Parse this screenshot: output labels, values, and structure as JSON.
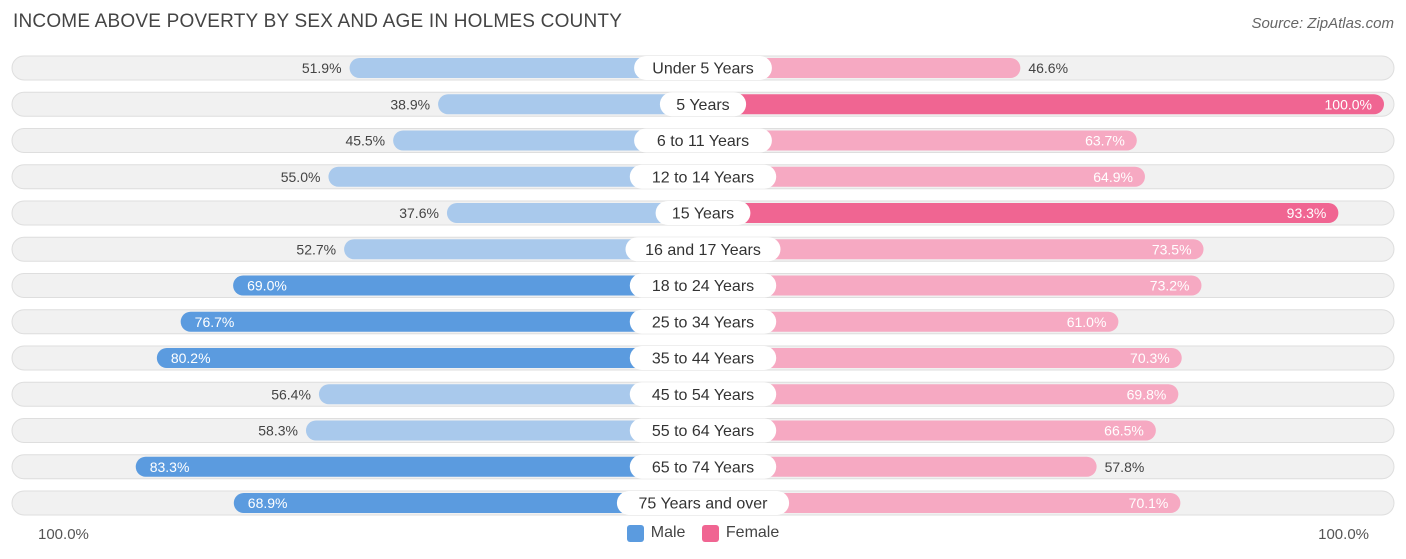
{
  "header": {
    "title": "INCOME ABOVE POVERTY BY SEX AND AGE IN HOLMES COUNTY",
    "source": "Source: ZipAtlas.com"
  },
  "axis": {
    "left_label": "100.0%",
    "right_label": "100.0%"
  },
  "legend": {
    "male_label": "Male",
    "female_label": "Female"
  },
  "colors": {
    "male_dark": "#5b9bdf",
    "male_light": "#a9c9ec",
    "female_dark": "#f06592",
    "female_light": "#f6a9c2",
    "row_bg": "#f1f1f1",
    "row_border": "#dedede"
  },
  "chart_data": {
    "type": "bar",
    "orientation": "horizontal-diverging",
    "title": "INCOME ABOVE POVERTY BY SEX AND AGE IN HOLMES COUNTY",
    "xlim": [
      0,
      100
    ],
    "unit": "%",
    "categories": [
      "Under 5 Years",
      "5 Years",
      "6 to 11 Years",
      "12 to 14 Years",
      "15 Years",
      "16 and 17 Years",
      "18 to 24 Years",
      "25 to 34 Years",
      "35 to 44 Years",
      "45 to 54 Years",
      "55 to 64 Years",
      "65 to 74 Years",
      "75 Years and over"
    ],
    "series": [
      {
        "name": "Male",
        "values": [
          51.9,
          38.9,
          45.5,
          55.0,
          37.6,
          52.7,
          69.0,
          76.7,
          80.2,
          56.4,
          58.3,
          83.3,
          68.9
        ]
      },
      {
        "name": "Female",
        "values": [
          46.6,
          100.0,
          63.7,
          64.9,
          93.3,
          73.5,
          73.2,
          61.0,
          70.3,
          69.8,
          66.5,
          57.8,
          70.1
        ]
      }
    ]
  }
}
